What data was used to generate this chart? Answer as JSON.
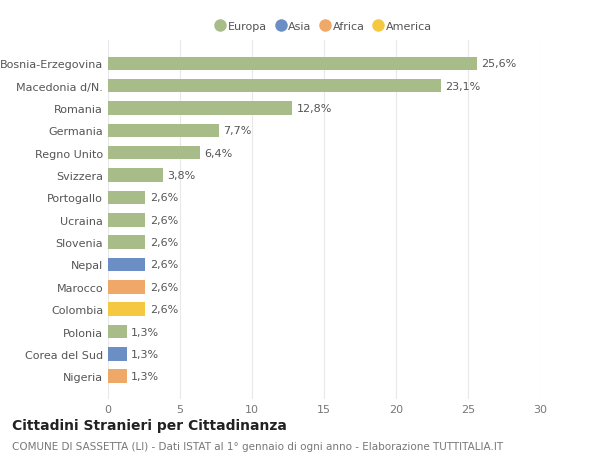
{
  "categories": [
    "Nigeria",
    "Corea del Sud",
    "Polonia",
    "Colombia",
    "Marocco",
    "Nepal",
    "Slovenia",
    "Ucraina",
    "Portogallo",
    "Svizzera",
    "Regno Unito",
    "Germania",
    "Romania",
    "Macedonia d/N.",
    "Bosnia-Erzegovina"
  ],
  "values": [
    1.3,
    1.3,
    1.3,
    2.6,
    2.6,
    2.6,
    2.6,
    2.6,
    2.6,
    3.8,
    6.4,
    7.7,
    12.8,
    23.1,
    25.6
  ],
  "bar_colors": [
    "#F0A868",
    "#6B8EC4",
    "#A8BC8A",
    "#F5C842",
    "#F0A868",
    "#6B8EC4",
    "#A8BC8A",
    "#A8BC8A",
    "#A8BC8A",
    "#A8BC8A",
    "#A8BC8A",
    "#A8BC8A",
    "#A8BC8A",
    "#A8BC8A",
    "#A8BC8A"
  ],
  "labels": [
    "1,3%",
    "1,3%",
    "1,3%",
    "2,6%",
    "2,6%",
    "2,6%",
    "2,6%",
    "2,6%",
    "2,6%",
    "3,8%",
    "6,4%",
    "7,7%",
    "12,8%",
    "23,1%",
    "25,6%"
  ],
  "legend_names": [
    "Europa",
    "Asia",
    "Africa",
    "America"
  ],
  "legend_colors": [
    "#A8BC8A",
    "#6B8EC4",
    "#F0A868",
    "#F5C842"
  ],
  "xlim": [
    0,
    30
  ],
  "xticks": [
    0,
    5,
    10,
    15,
    20,
    25,
    30
  ],
  "title": "Cittadini Stranieri per Cittadinanza",
  "subtitle": "COMUNE DI SASSETTA (LI) - Dati ISTAT al 1° gennaio di ogni anno - Elaborazione TUTTITALIA.IT",
  "bg_color": "#ffffff",
  "grid_color": "#e8e8e8",
  "bar_height": 0.6,
  "label_fontsize": 8,
  "tick_fontsize": 8,
  "title_fontsize": 10,
  "subtitle_fontsize": 7.5
}
